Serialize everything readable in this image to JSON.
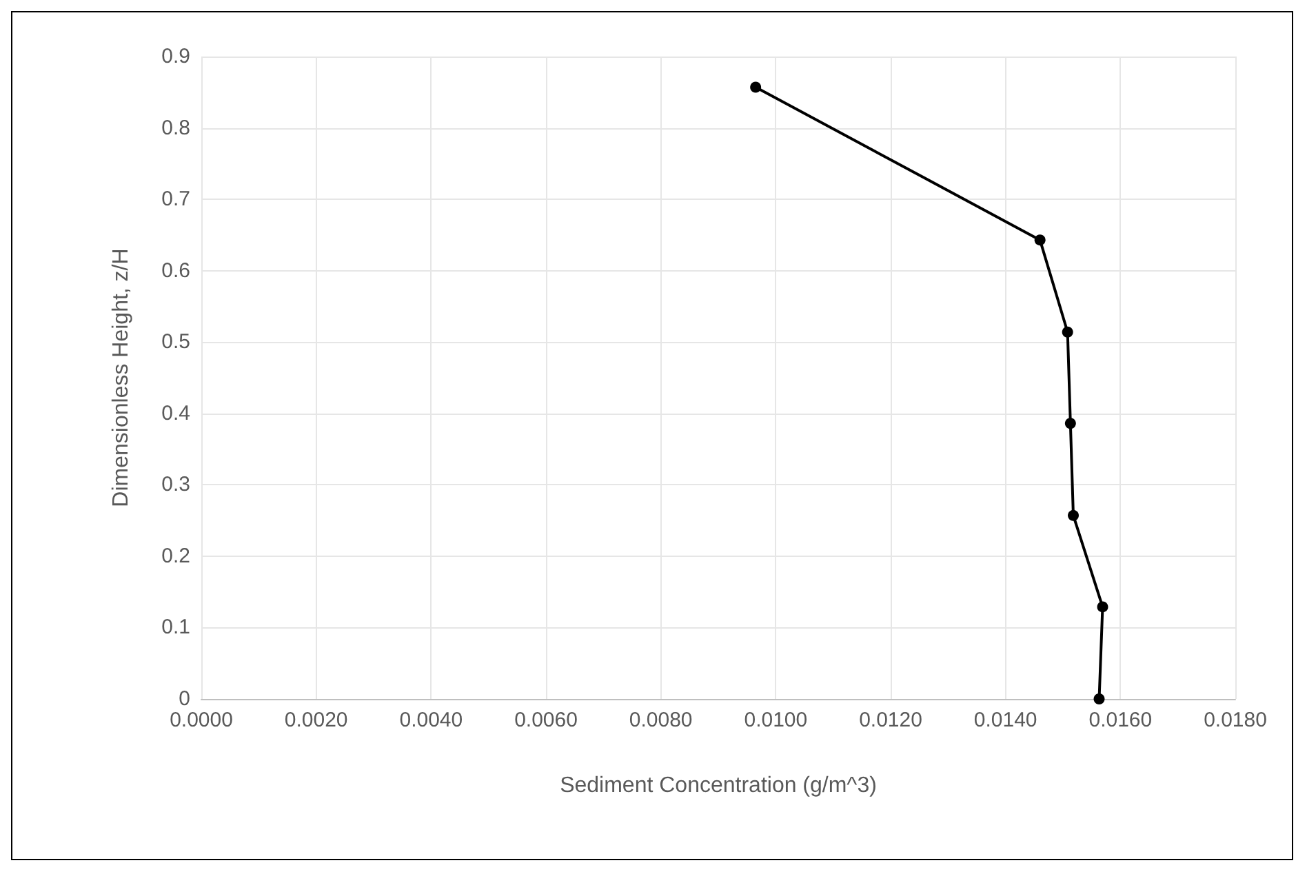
{
  "chart_data": {
    "type": "line",
    "xlabel": "Sediment Concentration (g/m^3)",
    "ylabel": "Dimensionless Height, z/H",
    "series": [
      {
        "color": "#000000",
        "x": [
          0.00965,
          0.0146,
          0.01508,
          0.01513,
          0.01518,
          0.01569,
          0.01563
        ],
        "values": [
          0.857,
          0.643,
          0.514,
          0.386,
          0.257,
          0.129,
          0
        ]
      }
    ],
    "xlim": [
      0,
      0.018
    ],
    "xticks": [
      {
        "value": 0,
        "label": "0.0000"
      },
      {
        "value": 0.002,
        "label": "0.0020"
      },
      {
        "value": 0.004,
        "label": "0.0040"
      },
      {
        "value": 0.006,
        "label": "0.0060"
      },
      {
        "value": 0.008,
        "label": "0.0080"
      },
      {
        "value": 0.01,
        "label": "0.0100"
      },
      {
        "value": 0.012,
        "label": "0.0120"
      },
      {
        "value": 0.014,
        "label": "0.0140"
      },
      {
        "value": 0.016,
        "label": "0.0160"
      },
      {
        "value": 0.018,
        "label": "0.0180"
      }
    ],
    "ylim": [
      0,
      0.9
    ],
    "yticks": [
      0,
      0.1,
      0.2,
      0.3,
      0.4,
      0.5,
      0.6,
      0.7,
      0.8,
      0.9
    ],
    "grid": true,
    "marker": "circle",
    "line_style": "solid"
  }
}
